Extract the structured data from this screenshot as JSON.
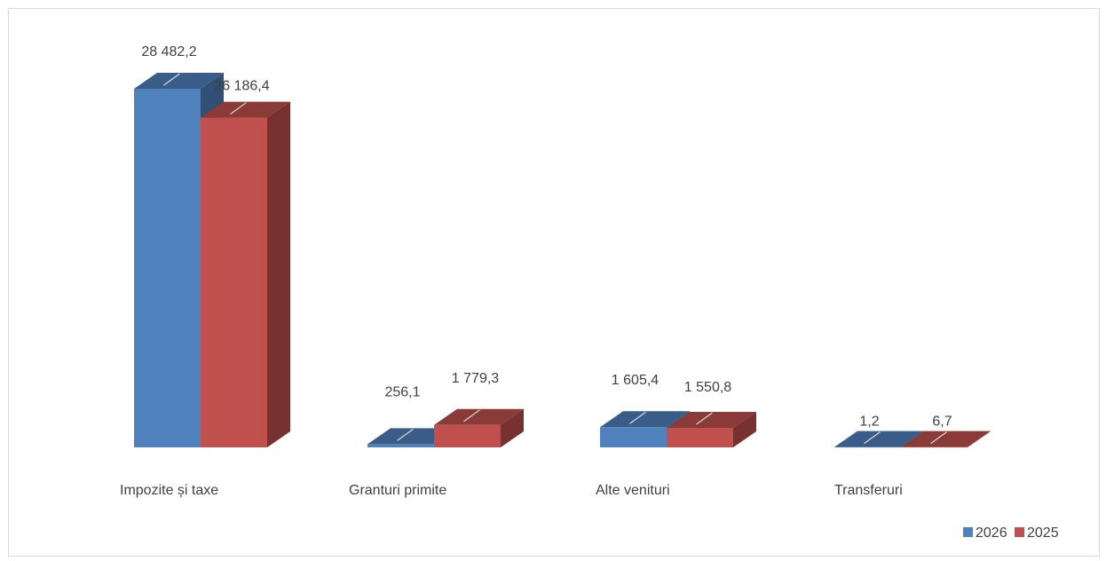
{
  "chart_data": {
    "type": "bar",
    "style": "3d-clustered-column",
    "categories": [
      "Impozite și taxe",
      "Granturi primite",
      "Alte venituri",
      "Transferuri"
    ],
    "series": [
      {
        "name": "2026",
        "color": "#4f81bd",
        "values": [
          28482.2,
          256.1,
          1605.4,
          1.2
        ],
        "labels": [
          "28 482,2",
          "256,1",
          "1 605,4",
          "1,2"
        ]
      },
      {
        "name": "2025",
        "color": "#c0504d",
        "values": [
          26186.4,
          1779.3,
          1550.8,
          6.7
        ],
        "labels": [
          "26 186,4",
          "1 779,3",
          "1 550,8",
          "6,7"
        ]
      }
    ],
    "ylim": [
      0,
      28482.2
    ],
    "grid": false,
    "legend": "bottom-right"
  }
}
